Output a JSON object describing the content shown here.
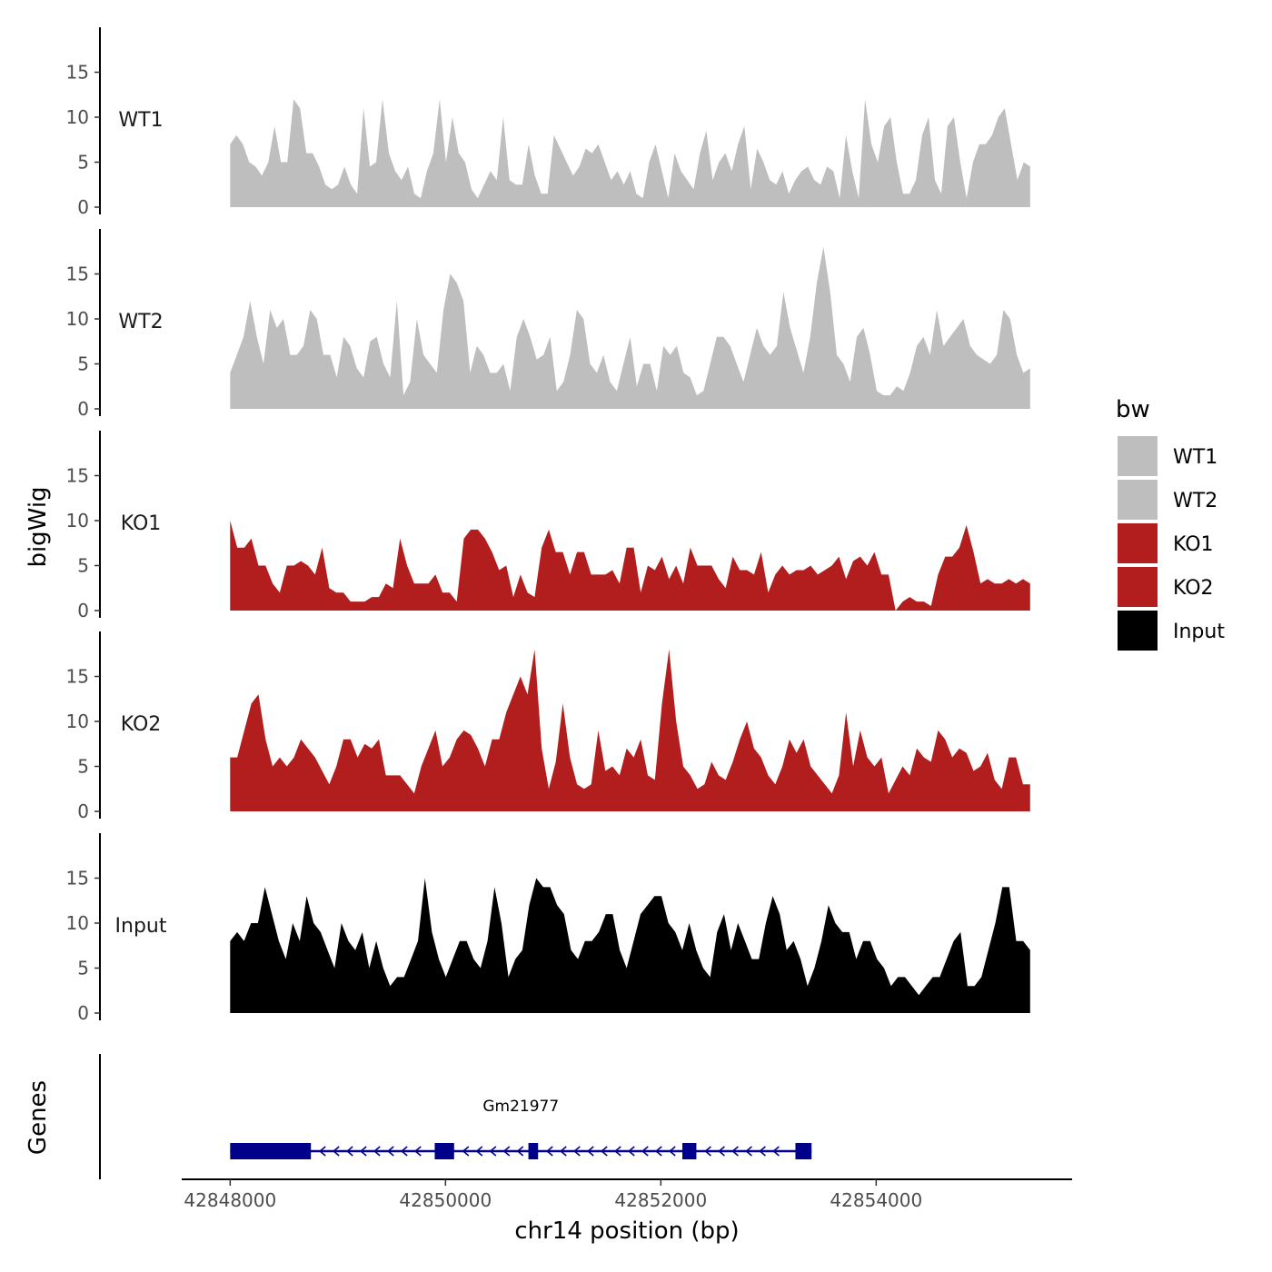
{
  "chart_data": {
    "type": "area",
    "chromosome": "chr14",
    "xlabel": "chr14 position (bp)",
    "ylabel": "bigWig",
    "genes_label": "Genes",
    "xlim": [
      42847550,
      42855820
    ],
    "region": [
      42848000,
      42855430
    ],
    "x_ticks": [
      42848000,
      42850000,
      42852000,
      42854000
    ],
    "x_tick_labels": [
      "42848000",
      "42850000",
      "42852000",
      "42854000"
    ],
    "ylim": [
      0,
      20
    ],
    "y_ticks": [
      0,
      5,
      10,
      15
    ],
    "y_tick_labels": [
      "0",
      "5",
      "10",
      "15"
    ],
    "legend": {
      "title": "bw",
      "entries": [
        {
          "label": "WT1",
          "color": "#bebebe"
        },
        {
          "label": "WT2",
          "color": "#bebebe"
        },
        {
          "label": "KO1",
          "color": "#b21e1e"
        },
        {
          "label": "KO2",
          "color": "#b21e1e"
        },
        {
          "label": "Input",
          "color": "#000000"
        }
      ]
    },
    "series": [
      {
        "name": "WT1",
        "color": "#bebebe",
        "values": [
          7,
          8,
          7,
          5,
          4.5,
          3.5,
          5,
          9,
          5,
          5,
          12,
          11,
          6,
          6,
          4.5,
          2.5,
          2,
          2.5,
          4.5,
          2.5,
          1.5,
          11,
          4.5,
          5,
          12,
          6,
          4,
          3,
          4.5,
          1.5,
          1,
          4,
          6,
          12,
          5,
          10,
          6,
          5,
          2,
          1,
          2.5,
          4,
          3,
          10,
          3,
          2.5,
          2.5,
          7,
          3.5,
          1.5,
          1.5,
          8,
          6.5,
          5,
          3.5,
          4.5,
          6.5,
          6,
          7,
          5,
          3,
          4,
          2.5,
          4,
          1.5,
          1,
          5,
          7,
          4,
          1,
          6,
          4,
          3,
          2,
          6,
          8.5,
          3,
          5,
          6,
          4,
          7,
          9,
          2,
          6.5,
          5,
          3,
          2.5,
          4,
          1.5,
          3,
          4,
          4.5,
          3,
          2.5,
          4.5,
          4,
          1,
          8,
          4,
          1,
          12,
          7,
          5,
          9,
          10,
          5,
          1.5,
          1.5,
          3,
          8,
          10,
          3,
          1.5,
          9,
          10,
          5,
          1,
          5,
          7,
          7,
          8,
          10,
          11,
          7,
          3,
          5,
          4.5
        ]
      },
      {
        "name": "WT2",
        "color": "#bebebe",
        "values": [
          4,
          6,
          8,
          12,
          8,
          5,
          11,
          9,
          10,
          6,
          6,
          7,
          11,
          10,
          6,
          6,
          3.5,
          8,
          7,
          4.5,
          3.5,
          7.5,
          8,
          5,
          3.5,
          12,
          1.5,
          3,
          10,
          6,
          5,
          4,
          11,
          15,
          14,
          12,
          4,
          7,
          6,
          4,
          4,
          5,
          2,
          8,
          10,
          8,
          5.5,
          6,
          8,
          2,
          3,
          6,
          11,
          10,
          5,
          4,
          6,
          3,
          2,
          5,
          8,
          2.5,
          5,
          5,
          2,
          7,
          6,
          7,
          4,
          3.5,
          1.5,
          2,
          5,
          8,
          8,
          7,
          5,
          3,
          6,
          9,
          7,
          6,
          7,
          13,
          9,
          6.5,
          4,
          8,
          14,
          18,
          13,
          6,
          5,
          3,
          8,
          9,
          6,
          2,
          1.5,
          1.5,
          2.5,
          2,
          4,
          7,
          8,
          6,
          11,
          7,
          8,
          9,
          10,
          7,
          6,
          5.5,
          5,
          6,
          11,
          10,
          6,
          4,
          4.5
        ]
      },
      {
        "name": "KO1",
        "color": "#b21e1e",
        "values": [
          10,
          7,
          7,
          8,
          5,
          5,
          3,
          2,
          5,
          5,
          5.5,
          5,
          4,
          7,
          2.5,
          2,
          2,
          1,
          1,
          1,
          1.5,
          1.5,
          3,
          2.5,
          8,
          5,
          3,
          3,
          3,
          4,
          2,
          2,
          1,
          8,
          9,
          9,
          8,
          6.5,
          4.5,
          5,
          1.5,
          4,
          2,
          1.5,
          7,
          9,
          6.5,
          6.5,
          4,
          6.5,
          6.5,
          4,
          4,
          4,
          4.5,
          3,
          7,
          7,
          2,
          5,
          4.5,
          6,
          3.5,
          5,
          3,
          7,
          5,
          5,
          5,
          3.5,
          2.5,
          6,
          4.5,
          4.5,
          4,
          6.5,
          2,
          4,
          5,
          4,
          4.5,
          4.5,
          5,
          4,
          4.5,
          5,
          6,
          3.5,
          5.5,
          6,
          5,
          6.5,
          4,
          4,
          0,
          1,
          1.5,
          1,
          1,
          0.5,
          4,
          6,
          6,
          7,
          9.5,
          6.5,
          3,
          3.5,
          3,
          3,
          3.5,
          3,
          3.5,
          3
        ]
      },
      {
        "name": "KO2",
        "color": "#b21e1e",
        "values": [
          6,
          6,
          9,
          12,
          13,
          8,
          5,
          6,
          5,
          6,
          8,
          7,
          6,
          4.5,
          3,
          5,
          8,
          8,
          6,
          7.5,
          7,
          8,
          4,
          4,
          4,
          3,
          2,
          5,
          7,
          9,
          5,
          6,
          8,
          9,
          8.5,
          7,
          5,
          8,
          8,
          11,
          13,
          15,
          13,
          18,
          7,
          2.5,
          5.5,
          12,
          6,
          3,
          2.5,
          3,
          9,
          4.5,
          5,
          4,
          7,
          6,
          8,
          4,
          3.5,
          12,
          18,
          10,
          5,
          4,
          2.5,
          3,
          5.5,
          4,
          3.5,
          5.5,
          8,
          10,
          7,
          6,
          4,
          3,
          5,
          8,
          6.5,
          8,
          5,
          4,
          3,
          2,
          4,
          11,
          5,
          9,
          6,
          5,
          6,
          2,
          3.5,
          5,
          4,
          7,
          6,
          5.5,
          9,
          8,
          6,
          7,
          6.5,
          4.5,
          5,
          6.5,
          3.5,
          2.5,
          6,
          6,
          3,
          3
        ]
      },
      {
        "name": "Input",
        "color": "#000000",
        "values": [
          8,
          9,
          8,
          10,
          10,
          14,
          11,
          8,
          6,
          10,
          8,
          13,
          10,
          9,
          7,
          5,
          10,
          8,
          7,
          9,
          5,
          8,
          5,
          3,
          4,
          4,
          6,
          8,
          15,
          9,
          6,
          4,
          6,
          8,
          8,
          6,
          5,
          8,
          14,
          10,
          4,
          6,
          7,
          12,
          15,
          14,
          14,
          12,
          11,
          7,
          6,
          8,
          8,
          9,
          11,
          11,
          7,
          5,
          8,
          11,
          12,
          13,
          13,
          10,
          9,
          7,
          10,
          7,
          5,
          4,
          9,
          11,
          7,
          10,
          8,
          6,
          6,
          10,
          13,
          11,
          7,
          8,
          6,
          3,
          5,
          8,
          12,
          10,
          9,
          9,
          6,
          8,
          8,
          6,
          5,
          3,
          4,
          4,
          3,
          2,
          3,
          4,
          4,
          6,
          8,
          9,
          3,
          3,
          4,
          7,
          10,
          14,
          14,
          8,
          8,
          7
        ]
      }
    ],
    "gene": {
      "name": "Gm21977",
      "start": 42848000,
      "end": 42853400,
      "strand": "-",
      "exons": [
        [
          42848000,
          42848750
        ],
        [
          42849900,
          42850080
        ],
        [
          42850770,
          42850860
        ],
        [
          42852200,
          42852330
        ],
        [
          42853250,
          42853400
        ]
      ]
    }
  }
}
